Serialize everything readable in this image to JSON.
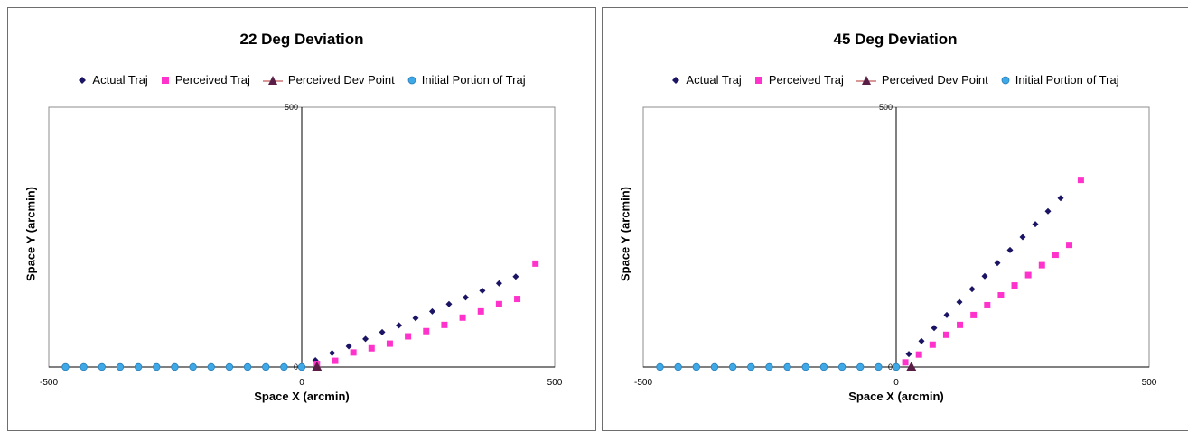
{
  "legend_entries": [
    "Actual Traj",
    "Perceived Traj",
    "Perceived Dev Point",
    "Initial Portion of Traj"
  ],
  "colors": {
    "actual": "#1b1464",
    "perceived": "#ff33cc",
    "dev_point": "#5a1e46",
    "initial": "#3fa9e8"
  },
  "chart_data": [
    {
      "type": "scatter",
      "title": "22 Deg Deviation",
      "xlabel": "Space X (arcmin)",
      "ylabel": "Space Y (arcmin)",
      "xlim": [
        -500,
        500
      ],
      "ylim": [
        0,
        500
      ],
      "x_ticks": [
        "-500",
        "0",
        "500"
      ],
      "y_ticks": [
        "0",
        "500"
      ],
      "grid": false,
      "legend_position": "top",
      "series": [
        {
          "name": "Actual Traj",
          "marker": "diamond",
          "color": "#1b1464",
          "x": [
            27,
            60,
            93,
            126,
            159,
            192,
            225,
            258,
            291,
            324,
            357,
            390,
            423
          ],
          "y": [
            13,
            27,
            40,
            54,
            67,
            80,
            94,
            107,
            121,
            134,
            147,
            161,
            174
          ]
        },
        {
          "name": "Perceived Traj",
          "marker": "square",
          "color": "#ff33cc",
          "x": [
            30,
            66,
            102,
            138,
            174,
            210,
            246,
            282,
            318,
            354,
            390,
            426,
            462
          ],
          "y": [
            6,
            12,
            28,
            36,
            45,
            59,
            69,
            81,
            95,
            107,
            121,
            131,
            199
          ]
        },
        {
          "name": "Perceived Dev Point",
          "marker": "triangle",
          "color": "#5a1e46",
          "x": [
            30
          ],
          "y": [
            0
          ]
        },
        {
          "name": "Initial Portion of Traj",
          "marker": "circle",
          "color": "#3fa9e8",
          "x": [
            -467,
            -431,
            -395,
            -359,
            -323,
            -287,
            -251,
            -215,
            -179,
            -143,
            -107,
            -71,
            -35,
            0
          ],
          "y": [
            0,
            0,
            0,
            0,
            0,
            0,
            0,
            0,
            0,
            0,
            0,
            0,
            0,
            0
          ]
        }
      ]
    },
    {
      "type": "scatter",
      "title": "45 Deg Deviation",
      "xlabel": "Space X (arcmin)",
      "ylabel": "Space Y (arcmin)",
      "xlim": [
        -500,
        500
      ],
      "ylim": [
        0,
        500
      ],
      "x_ticks": [
        "-500",
        "0",
        "500"
      ],
      "y_ticks": [
        "0",
        "500"
      ],
      "grid": false,
      "legend_position": "top",
      "series": [
        {
          "name": "Actual Traj",
          "marker": "diamond",
          "color": "#1b1464",
          "x": [
            25,
            50,
            75,
            100,
            125,
            150,
            175,
            200,
            225,
            250,
            275,
            300,
            325
          ],
          "y": [
            25,
            50,
            75,
            100,
            125,
            150,
            175,
            200,
            225,
            250,
            275,
            300,
            325
          ]
        },
        {
          "name": "Perceived Traj",
          "marker": "square",
          "color": "#ff33cc",
          "x": [
            18,
            45,
            72,
            99,
            126,
            153,
            180,
            207,
            234,
            261,
            288,
            315,
            342,
            365
          ],
          "y": [
            9,
            24,
            43,
            62,
            81,
            100,
            119,
            138,
            157,
            177,
            196,
            216,
            235,
            360
          ]
        },
        {
          "name": "Perceived Dev Point",
          "marker": "triangle",
          "color": "#5a1e46",
          "x": [
            30
          ],
          "y": [
            0
          ]
        },
        {
          "name": "Initial Portion of Traj",
          "marker": "circle",
          "color": "#3fa9e8",
          "x": [
            -467,
            -431,
            -395,
            -359,
            -323,
            -287,
            -251,
            -215,
            -179,
            -143,
            -107,
            -71,
            -35,
            0
          ],
          "y": [
            0,
            0,
            0,
            0,
            0,
            0,
            0,
            0,
            0,
            0,
            0,
            0,
            0,
            0
          ]
        }
      ]
    }
  ]
}
